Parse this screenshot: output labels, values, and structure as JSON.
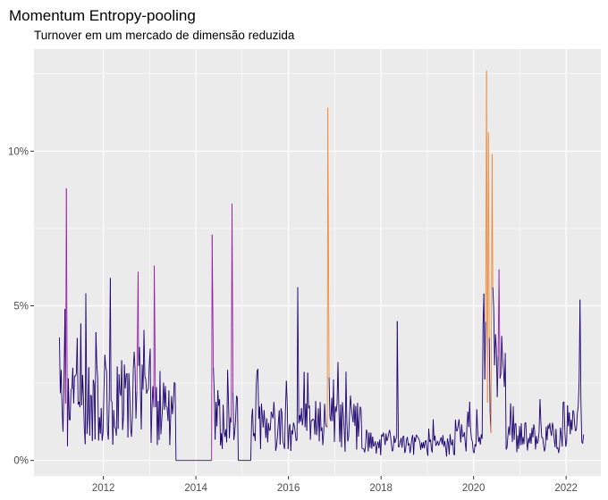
{
  "chart_data": {
    "type": "line",
    "title": "Momentum Entropy-pooling",
    "subtitle": "Turnover em um mercado de dimensão reduzida",
    "xlabel": "",
    "ylabel": "",
    "x_ticks": [
      {
        "value": 2012,
        "label": "2012"
      },
      {
        "value": 2014,
        "label": "2014"
      },
      {
        "value": 2016,
        "label": "2016"
      },
      {
        "value": 2018,
        "label": "2018"
      },
      {
        "value": 2020,
        "label": "2020"
      },
      {
        "value": 2022,
        "label": "2022"
      }
    ],
    "y_ticks": [
      {
        "value": 0,
        "label": "0%"
      },
      {
        "value": 0.05,
        "label": "5%"
      },
      {
        "value": 0.1,
        "label": "10%"
      }
    ],
    "xlim": [
      2010.5,
      2022.75
    ],
    "ylim": [
      -0.005,
      0.133
    ],
    "x_range": [
      2011.05,
      2022.38
    ],
    "grid": true,
    "legend": "none",
    "panel_background": "#ebebeb",
    "grid_color": "#ffffff",
    "colors": {
      "low": "#1a0070",
      "mid": "#9a1fa8",
      "high": "#f08a3c"
    },
    "data_note_style": "weekly turnover series",
    "flat_periods": [
      [
        2013.55,
        2014.35
      ],
      [
        2014.9,
        2015.2
      ]
    ],
    "peaks": [
      {
        "x": 2011.2,
        "y": 0.088
      },
      {
        "x": 2011.17,
        "y": 0.049
      },
      {
        "x": 2011.62,
        "y": 0.054
      },
      {
        "x": 2012.15,
        "y": 0.059
      },
      {
        "x": 2012.75,
        "y": 0.061
      },
      {
        "x": 2013.1,
        "y": 0.063
      },
      {
        "x": 2014.35,
        "y": 0.073
      },
      {
        "x": 2014.78,
        "y": 0.083
      },
      {
        "x": 2016.2,
        "y": 0.056
      },
      {
        "x": 2016.85,
        "y": 0.114
      },
      {
        "x": 2018.35,
        "y": 0.045
      },
      {
        "x": 2020.28,
        "y": 0.126
      },
      {
        "x": 2020.32,
        "y": 0.106
      },
      {
        "x": 2020.4,
        "y": 0.099
      },
      {
        "x": 2022.3,
        "y": 0.052
      }
    ]
  }
}
